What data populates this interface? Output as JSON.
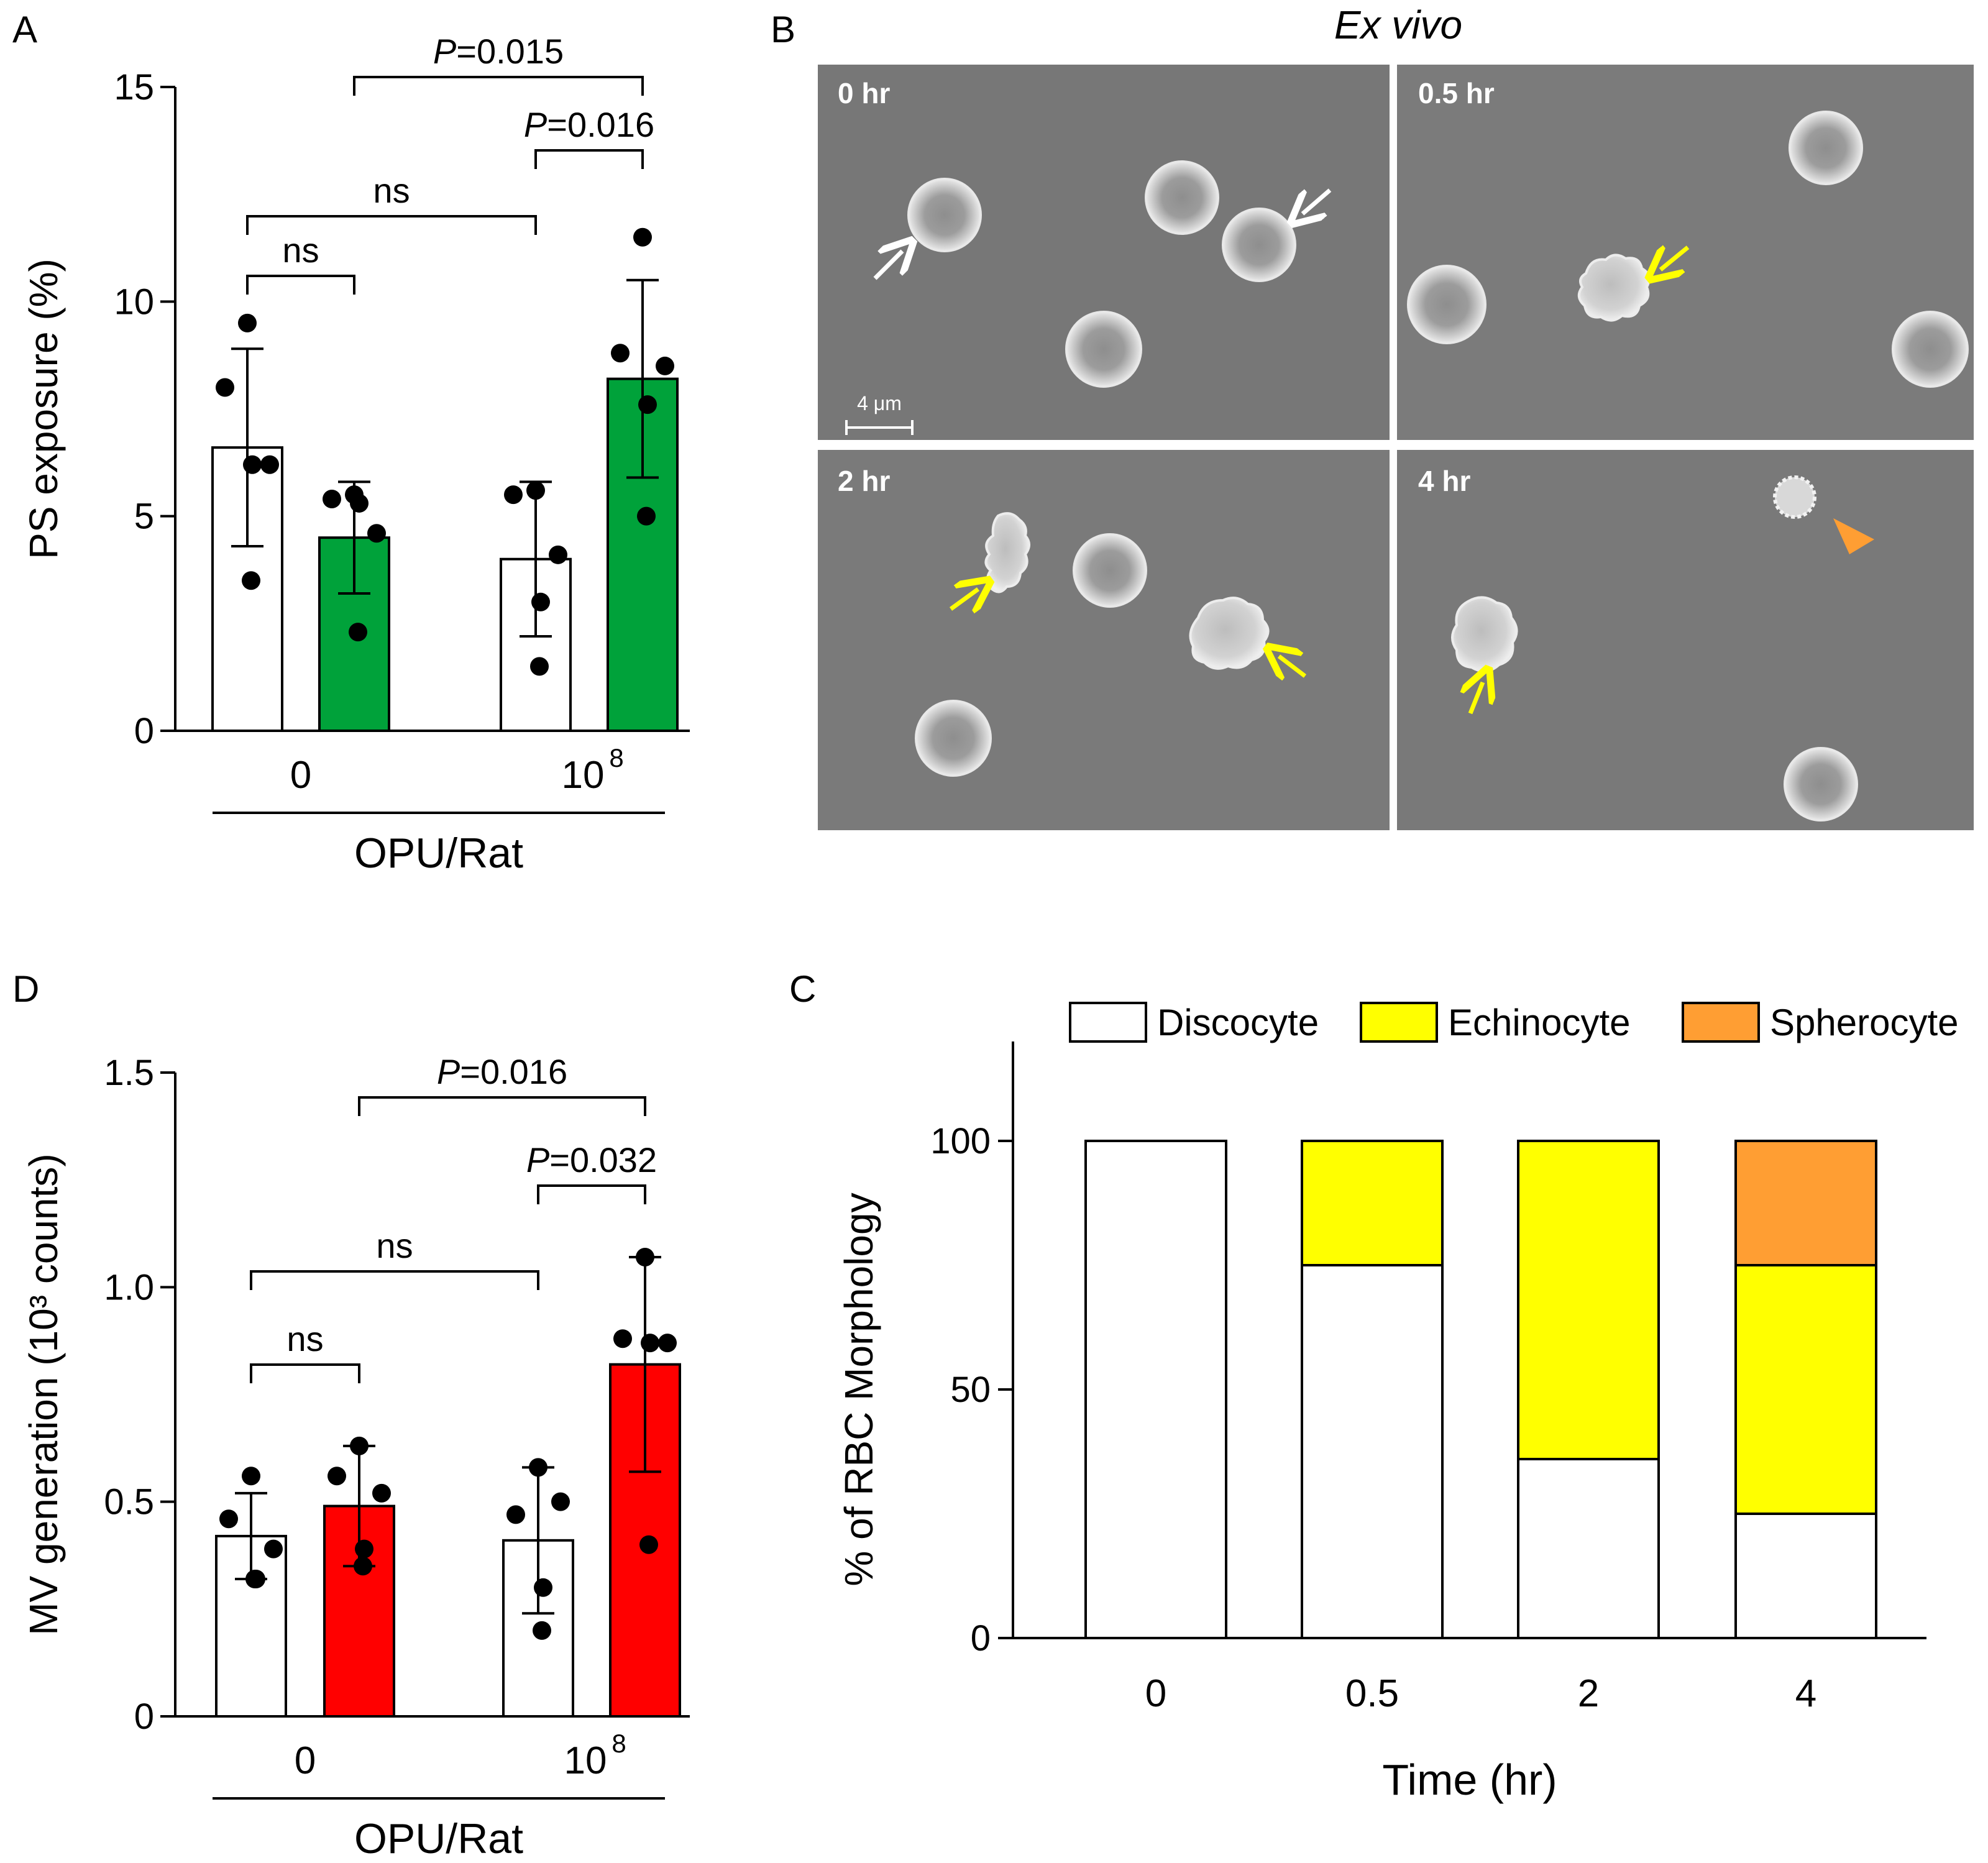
{
  "colors": {
    "green": "#00a23a",
    "red": "#ff0000",
    "yellow": "#ffff00",
    "orange": "#ff9e33",
    "white": "#ffffff",
    "sem_bg": "#767676"
  },
  "panel_a": {
    "letter": "A"
  },
  "panel_b": {
    "letter": "B",
    "title": "Ex vivo",
    "tiles": [
      "0 hr",
      "0.5 hr",
      "2 hr",
      "4 hr"
    ],
    "scale_bar": "4 μm"
  },
  "panel_c": {
    "letter": "C"
  },
  "panel_d": {
    "letter": "D"
  },
  "chart_data": [
    {
      "id": "A",
      "type": "bar",
      "ylabel": "PS exposure (%)",
      "xlabel": "OPU/Rat",
      "group_labels": [
        "0",
        "10^8"
      ],
      "group_label_base": "10",
      "group_label_exp": "8",
      "ylim": [
        0,
        15
      ],
      "yticks": [
        "0",
        "5",
        "10",
        "15"
      ],
      "ytick_values": [
        0,
        5,
        10,
        15
      ],
      "bars": [
        {
          "group": 0,
          "fill": "white",
          "mean": 6.6,
          "sd": 2.3,
          "points": [
            9.5,
            8.0,
            6.2,
            6.2,
            3.5
          ]
        },
        {
          "group": 0,
          "fill": "green",
          "mean": 4.5,
          "sd": 1.3,
          "points": [
            5.5,
            5.4,
            4.6,
            5.3,
            2.3
          ]
        },
        {
          "group": 1,
          "fill": "white",
          "mean": 4.0,
          "sd": 1.8,
          "points": [
            5.6,
            5.5,
            4.1,
            3.0,
            1.5
          ]
        },
        {
          "group": 1,
          "fill": "green",
          "mean": 8.2,
          "sd": 2.3,
          "points": [
            11.5,
            8.8,
            8.5,
            7.6,
            5.0
          ]
        }
      ],
      "comparisons": [
        {
          "from": 1,
          "to": 3,
          "prefix": "P",
          "label": "=0.015"
        },
        {
          "from": 2,
          "to": 3,
          "prefix": "P",
          "label": "=0.016"
        },
        {
          "from": 0,
          "to": 2,
          "prefix": "",
          "label": "ns"
        },
        {
          "from": 0,
          "to": 1,
          "prefix": "",
          "label": "ns"
        }
      ]
    },
    {
      "id": "D",
      "type": "bar",
      "ylabel": "MV generation (10³ counts)",
      "xlabel": "OPU/Rat",
      "group_labels": [
        "0",
        "10^8"
      ],
      "group_label_base": "10",
      "group_label_exp": "8",
      "ylim": [
        0,
        1.5
      ],
      "yticks": [
        "0",
        "0.5",
        "1.0",
        "1.5"
      ],
      "ytick_values": [
        0,
        0.5,
        1.0,
        1.5
      ],
      "bars": [
        {
          "group": 0,
          "fill": "white",
          "mean": 0.42,
          "sd": 0.1,
          "points": [
            0.56,
            0.46,
            0.39,
            0.32,
            0.32
          ]
        },
        {
          "group": 0,
          "fill": "red",
          "mean": 0.49,
          "sd": 0.14,
          "points": [
            0.63,
            0.56,
            0.52,
            0.39,
            0.35
          ]
        },
        {
          "group": 1,
          "fill": "white",
          "mean": 0.41,
          "sd": 0.17,
          "points": [
            0.58,
            0.47,
            0.5,
            0.3,
            0.2
          ]
        },
        {
          "group": 1,
          "fill": "red",
          "mean": 0.82,
          "sd": 0.25,
          "points": [
            1.07,
            0.88,
            0.87,
            0.87,
            0.4
          ]
        }
      ],
      "comparisons": [
        {
          "from": 1,
          "to": 3,
          "prefix": "P",
          "label": "=0.016"
        },
        {
          "from": 2,
          "to": 3,
          "prefix": "P",
          "label": "=0.032"
        },
        {
          "from": 0,
          "to": 2,
          "prefix": "",
          "label": "ns"
        },
        {
          "from": 0,
          "to": 1,
          "prefix": "",
          "label": "ns"
        }
      ]
    },
    {
      "id": "C",
      "type": "bar",
      "stacked": true,
      "ylabel": "% of RBC Morphology",
      "xlabel": "Time (hr)",
      "categories": [
        "0",
        "0.5",
        "2",
        "4"
      ],
      "ylim": [
        0,
        120
      ],
      "yticks": [
        "0",
        "50",
        "100"
      ],
      "ytick_values": [
        0,
        50,
        100
      ],
      "series": [
        {
          "name": "Discocyte",
          "color": "white",
          "values": [
            100,
            75,
            36,
            25
          ]
        },
        {
          "name": "Echinocyte",
          "color": "yellow",
          "values": [
            0,
            25,
            64,
            50
          ]
        },
        {
          "name": "Spherocyte",
          "color": "orange",
          "values": [
            0,
            0,
            0,
            25
          ]
        }
      ]
    }
  ]
}
